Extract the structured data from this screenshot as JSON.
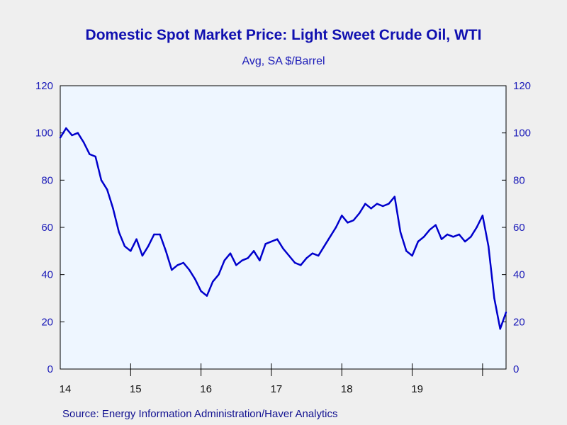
{
  "chart_data": {
    "type": "line",
    "title": "Domestic Spot Market Price: Light Sweet Crude Oil, WTI",
    "subtitle": "Avg, SA $/Barrel",
    "source": "Source:  Energy Information Administration/Haver Analytics",
    "ylim": [
      0,
      120
    ],
    "yticks": [
      "0",
      "20",
      "40",
      "60",
      "80",
      "100",
      "120"
    ],
    "yticks_right": [
      "0",
      "20",
      "40",
      "60",
      "80",
      "100",
      "120"
    ],
    "xticks": [
      "14",
      "15",
      "16",
      "17",
      "18",
      "19"
    ],
    "x_range": [
      "2014-01",
      "2020-05"
    ],
    "grid": false,
    "colors": {
      "line": "#0000cc",
      "plot_bg": "#eef6ff",
      "axis": "#000000"
    },
    "series": [
      {
        "x": [
          "2014-01",
          "2014-02",
          "2014-03",
          "2014-04",
          "2014-05",
          "2014-06",
          "2014-07",
          "2014-08",
          "2014-09",
          "2014-10",
          "2014-11",
          "2014-12",
          "2015-01",
          "2015-02",
          "2015-03",
          "2015-04",
          "2015-05",
          "2015-06",
          "2015-07",
          "2015-08",
          "2015-09",
          "2015-10",
          "2015-11",
          "2015-12",
          "2016-01",
          "2016-02",
          "2016-03",
          "2016-04",
          "2016-05",
          "2016-06",
          "2016-07",
          "2016-08",
          "2016-09",
          "2016-10",
          "2016-11",
          "2016-12",
          "2017-01",
          "2017-02",
          "2017-03",
          "2017-04",
          "2017-05",
          "2017-06",
          "2017-07",
          "2017-08",
          "2017-09",
          "2017-10",
          "2017-11",
          "2017-12",
          "2018-01",
          "2018-02",
          "2018-03",
          "2018-04",
          "2018-05",
          "2018-06",
          "2018-07",
          "2018-08",
          "2018-09",
          "2018-10",
          "2018-11",
          "2018-12",
          "2019-01",
          "2019-02",
          "2019-03",
          "2019-04",
          "2019-05",
          "2019-06",
          "2019-07",
          "2019-08",
          "2019-09",
          "2019-10",
          "2019-11",
          "2019-12",
          "2020-01",
          "2020-02",
          "2020-03",
          "2020-04",
          "2020-05"
        ],
        "values": [
          98,
          102,
          99,
          100,
          96,
          91,
          90,
          80,
          76,
          68,
          58,
          52,
          50,
          55,
          48,
          52,
          57,
          57,
          50,
          42,
          44,
          45,
          42,
          38,
          33,
          31,
          37,
          40,
          46,
          49,
          44,
          46,
          47,
          50,
          46,
          53,
          54,
          55,
          51,
          48,
          45,
          44,
          47,
          49,
          48,
          52,
          56,
          60,
          65,
          62,
          63,
          66,
          70,
          68,
          70,
          69,
          70,
          73,
          58,
          50,
          48,
          54,
          56,
          59,
          61,
          55,
          57,
          56,
          57,
          54,
          56,
          60,
          65,
          52,
          30,
          17,
          24
        ]
      }
    ]
  }
}
